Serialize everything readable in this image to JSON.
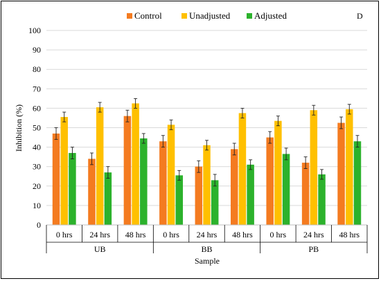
{
  "chart_data": {
    "type": "bar",
    "panel_label": "D",
    "xlabel": "Sample",
    "ylabel": "Inhibition (%)",
    "ylim": [
      0,
      100
    ],
    "yticks": [
      0,
      10,
      20,
      30,
      40,
      50,
      60,
      70,
      80,
      90,
      100
    ],
    "legend_position": "top-center",
    "groups": [
      {
        "name": "UB",
        "categories": [
          "0 hrs",
          "24 hrs",
          "48 hrs"
        ]
      },
      {
        "name": "BB",
        "categories": [
          "0 hrs",
          "24 hrs",
          "48 hrs"
        ]
      },
      {
        "name": "PB",
        "categories": [
          "0 hrs",
          "24 hrs",
          "48 hrs"
        ]
      }
    ],
    "series": [
      {
        "name": "Control",
        "color": "#F47B20",
        "values": [
          47,
          34,
          56,
          43,
          30,
          39,
          45,
          32,
          52.5
        ],
        "errors": [
          3,
          3,
          3,
          3,
          3,
          3,
          3,
          3,
          3
        ]
      },
      {
        "name": "Unadjusted",
        "color": "#FFC000",
        "values": [
          55.5,
          60.5,
          62.5,
          51.5,
          41,
          57.5,
          53.5,
          59,
          59.5
        ],
        "errors": [
          2.5,
          2.5,
          2.5,
          2.5,
          2.5,
          2.5,
          2.5,
          2.5,
          2.5
        ]
      },
      {
        "name": "Adjusted",
        "color": "#2CB22C",
        "values": [
          37,
          27,
          44.5,
          25.5,
          23,
          31,
          36.5,
          26,
          43
        ],
        "errors": [
          3,
          3,
          2.5,
          2.5,
          3,
          2.5,
          3,
          2.5,
          3
        ]
      }
    ]
  }
}
